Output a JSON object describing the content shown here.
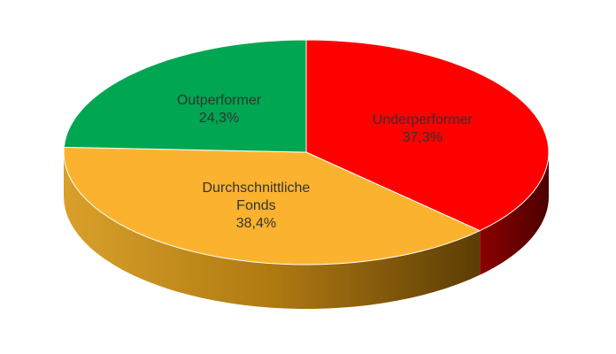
{
  "chart_data": {
    "type": "pie3d",
    "categories": [
      "Underperformer",
      "Durchschnittliche Fonds",
      "Outperformer"
    ],
    "values": [
      37.3,
      38.4,
      24.3
    ],
    "value_labels": [
      "37,3%",
      "38,4%",
      "24,3%"
    ],
    "colors": [
      "#ff0000",
      "#fbb32f",
      "#00a651"
    ]
  }
}
